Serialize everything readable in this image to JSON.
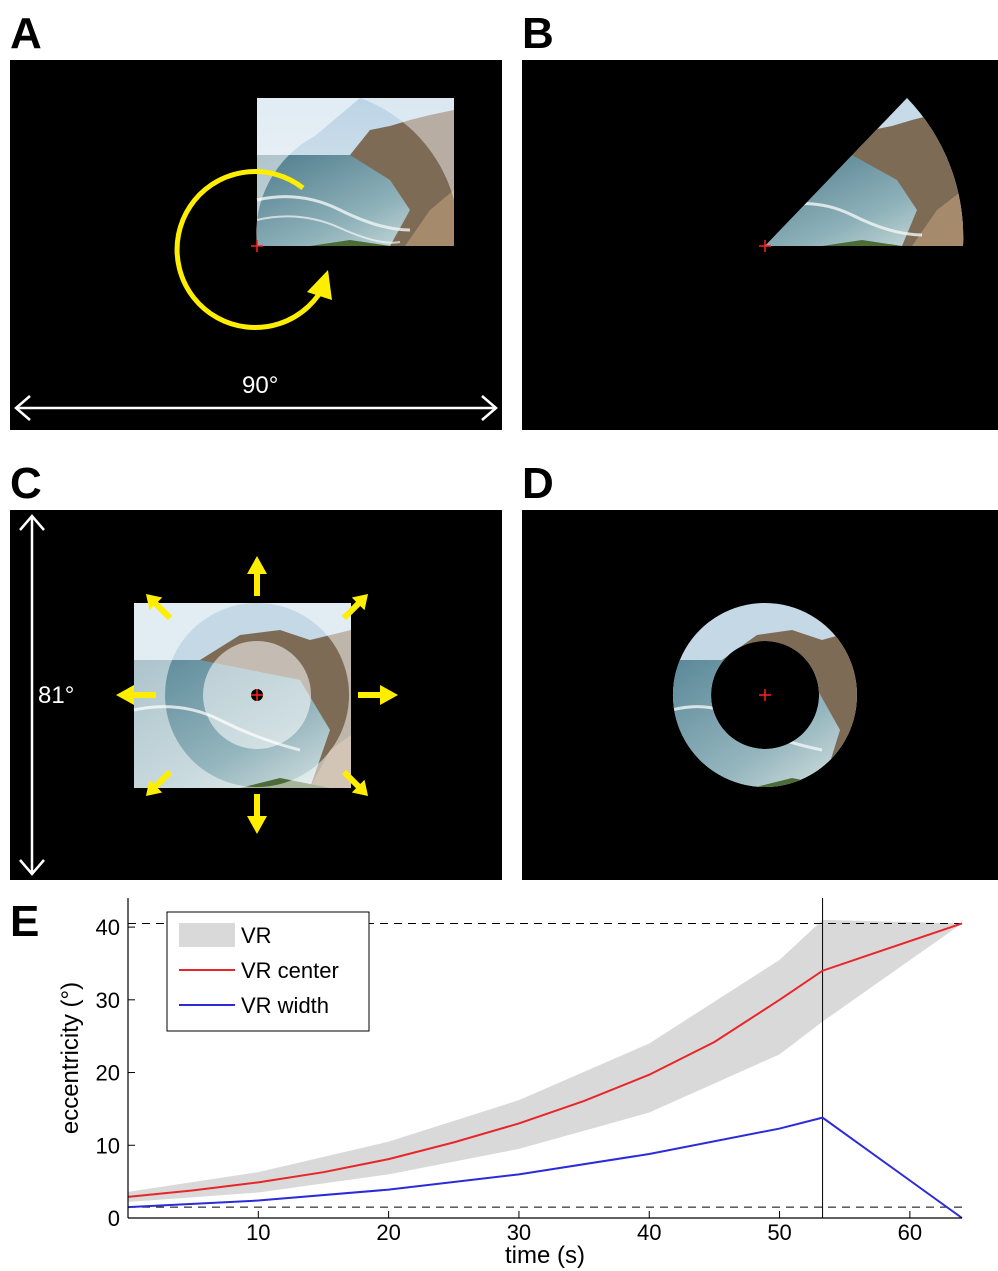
{
  "panels": {
    "a": {
      "letter": "A",
      "width_label": "90°"
    },
    "b": {
      "letter": "B"
    },
    "c": {
      "letter": "C",
      "height_label": "81°"
    },
    "d": {
      "letter": "D"
    },
    "e": {
      "letter": "E"
    }
  },
  "colors": {
    "stimulus_background": "#000000",
    "arrow_yellow": "#ffee00",
    "fixation": "#ff2020",
    "vr_band": "#d9d9d9",
    "vr_center": "#e8262a",
    "vr_width": "#2b2bd9"
  },
  "chart_data": {
    "type": "line",
    "xlabel": "time (s)",
    "ylabel": "eccentricity (°)",
    "xlim": [
      0,
      64
    ],
    "ylim": [
      0,
      44
    ],
    "xticks": [
      10,
      20,
      30,
      40,
      50,
      60
    ],
    "yticks": [
      0,
      10,
      20,
      30,
      40
    ],
    "grid": false,
    "legend_position": "top-left",
    "legend": [
      "VR",
      "VR center",
      "VR width"
    ],
    "vertical_line_x": 53.3,
    "dashed_hlines": [
      40.5,
      1.5
    ],
    "series": [
      {
        "name": "VR",
        "kind": "band",
        "x": [
          0,
          10,
          20,
          30,
          40,
          50,
          53.3,
          64
        ],
        "lower": [
          2.2,
          3.5,
          6.0,
          9.5,
          14.5,
          22.5,
          27.0,
          40.5
        ],
        "upper": [
          3.6,
          6.3,
          10.5,
          16.2,
          24.0,
          35.5,
          41.0,
          40.5
        ]
      },
      {
        "name": "VR center",
        "kind": "line",
        "x": [
          0,
          5,
          10,
          15,
          20,
          25,
          30,
          35,
          40,
          45,
          50,
          53.3,
          64
        ],
        "y": [
          2.9,
          3.8,
          4.9,
          6.3,
          8.1,
          10.4,
          13.0,
          16.1,
          19.7,
          24.2,
          30.0,
          34.0,
          40.5
        ]
      },
      {
        "name": "VR width",
        "kind": "line",
        "x": [
          0,
          10,
          20,
          30,
          40,
          50,
          53.3,
          64
        ],
        "y": [
          1.5,
          2.4,
          3.9,
          6.0,
          8.8,
          12.3,
          13.8,
          0.0
        ]
      }
    ]
  }
}
